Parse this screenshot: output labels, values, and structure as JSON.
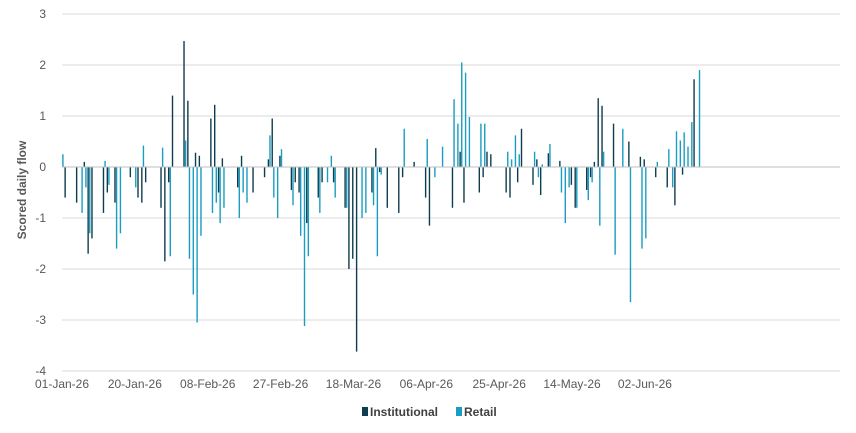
{
  "chart_data": {
    "type": "bar",
    "ylabel": "Scored daily flow",
    "xlabel": "",
    "title": "",
    "ylim": [
      -4,
      3
    ],
    "y_ticks": [
      "-4",
      "-3",
      "-2",
      "-1",
      "0",
      "1",
      "2",
      "3"
    ],
    "x_tick_labels": [
      "01-Jan-26",
      "20-Jan-26",
      "08-Feb-26",
      "27-Feb-26",
      "18-Mar-26",
      "06-Apr-26",
      "25-Apr-26",
      "14-May-26",
      "02-Jun-26"
    ],
    "x_range": [
      "2026-01-01",
      "2026-06-15"
    ],
    "grid": "horizontal",
    "legend_position": "bottom",
    "colors": {
      "Institutional": "#0e3d4f",
      "Retail": "#1a9dc0",
      "grid": "#d9d9d9",
      "text": "#595959"
    },
    "series": [
      {
        "name": "Institutional",
        "values": [
          [
            "2026-01-02",
            -0.6
          ],
          [
            "2026-01-05",
            -0.7
          ],
          [
            "2026-01-07",
            0.1
          ],
          [
            "2026-01-08",
            -1.7
          ],
          [
            "2026-01-09",
            -1.4
          ],
          [
            "2026-01-12",
            -0.9
          ],
          [
            "2026-01-13",
            -0.5
          ],
          [
            "2026-01-15",
            -0.7
          ],
          [
            "2026-01-19",
            -0.2
          ],
          [
            "2026-01-21",
            -0.6
          ],
          [
            "2026-01-22",
            -0.7
          ],
          [
            "2026-01-23",
            -0.3
          ],
          [
            "2026-01-27",
            -0.8
          ],
          [
            "2026-01-28",
            -1.85
          ],
          [
            "2026-01-29",
            -0.3
          ],
          [
            "2026-01-30",
            1.4
          ],
          [
            "2026-02-02",
            2.47
          ],
          [
            "2026-02-03",
            1.3
          ],
          [
            "2026-02-05",
            0.28
          ],
          [
            "2026-02-06",
            0.22
          ],
          [
            "2026-02-09",
            0.95
          ],
          [
            "2026-02-10",
            1.22
          ],
          [
            "2026-02-11",
            -0.5
          ],
          [
            "2026-02-12",
            0.17
          ],
          [
            "2026-02-16",
            -0.4
          ],
          [
            "2026-02-17",
            0.22
          ],
          [
            "2026-02-20",
            -0.5
          ],
          [
            "2026-02-23",
            -0.2
          ],
          [
            "2026-02-24",
            0.15
          ],
          [
            "2026-02-25",
            0.95
          ],
          [
            "2026-02-27",
            0.22
          ],
          [
            "2026-03-02",
            -0.45
          ],
          [
            "2026-03-03",
            -0.3
          ],
          [
            "2026-03-04",
            -0.5
          ],
          [
            "2026-03-06",
            -1.1
          ],
          [
            "2026-03-09",
            -0.6
          ],
          [
            "2026-03-10",
            -0.3
          ],
          [
            "2026-03-13",
            -0.3
          ],
          [
            "2026-03-16",
            -0.8
          ],
          [
            "2026-03-17",
            -2.0
          ],
          [
            "2026-03-18",
            -1.8
          ],
          [
            "2026-03-19",
            -3.62
          ],
          [
            "2026-03-23",
            -0.5
          ],
          [
            "2026-03-24",
            0.37
          ],
          [
            "2026-03-25",
            -0.1
          ],
          [
            "2026-03-27",
            -0.8
          ],
          [
            "2026-03-30",
            -0.9
          ],
          [
            "2026-03-31",
            -0.2
          ],
          [
            "2026-04-03",
            0.1
          ],
          [
            "2026-04-06",
            -0.6
          ],
          [
            "2026-04-07",
            -1.15
          ],
          [
            "2026-04-13",
            -0.8
          ],
          [
            "2026-04-15",
            0.3
          ],
          [
            "2026-04-16",
            -0.7
          ],
          [
            "2026-04-20",
            -0.5
          ],
          [
            "2026-04-21",
            -0.2
          ],
          [
            "2026-04-22",
            0.3
          ],
          [
            "2026-04-23",
            0.25
          ],
          [
            "2026-04-27",
            -0.5
          ],
          [
            "2026-04-28",
            -0.6
          ],
          [
            "2026-04-30",
            -0.3
          ],
          [
            "2026-05-01",
            0.75
          ],
          [
            "2026-05-04",
            -0.35
          ],
          [
            "2026-05-05",
            0.15
          ],
          [
            "2026-05-06",
            -0.55
          ],
          [
            "2026-05-08",
            0.27
          ],
          [
            "2026-05-11",
            0.12
          ],
          [
            "2026-05-14",
            -0.35
          ],
          [
            "2026-05-15",
            -0.8
          ],
          [
            "2026-05-18",
            -0.45
          ],
          [
            "2026-05-19",
            -0.2
          ],
          [
            "2026-05-20",
            0.1
          ],
          [
            "2026-05-21",
            1.35
          ],
          [
            "2026-05-22",
            1.2
          ],
          [
            "2026-05-25",
            0.85
          ],
          [
            "2026-05-29",
            0.5
          ],
          [
            "2026-06-01",
            0.2
          ],
          [
            "2026-06-02",
            0.15
          ],
          [
            "2026-06-05",
            -0.2
          ],
          [
            "2026-06-08",
            -0.4
          ],
          [
            "2026-06-10",
            -0.75
          ],
          [
            "2026-06-12",
            -0.15
          ],
          [
            "2026-06-15",
            1.72
          ]
        ]
      },
      {
        "name": "Retail",
        "values": [
          [
            "2026-01-01",
            0.25
          ],
          [
            "2026-01-06",
            -0.9
          ],
          [
            "2026-01-07",
            -0.4
          ],
          [
            "2026-01-08",
            -1.3
          ],
          [
            "2026-01-12",
            0.12
          ],
          [
            "2026-01-13",
            -0.35
          ],
          [
            "2026-01-15",
            -1.6
          ],
          [
            "2026-01-16",
            -1.3
          ],
          [
            "2026-01-20",
            -0.4
          ],
          [
            "2026-01-22",
            0.42
          ],
          [
            "2026-01-27",
            0.38
          ],
          [
            "2026-01-29",
            -1.75
          ],
          [
            "2026-02-02",
            0.52
          ],
          [
            "2026-02-03",
            -1.8
          ],
          [
            "2026-02-04",
            -2.5
          ],
          [
            "2026-02-05",
            -3.05
          ],
          [
            "2026-02-06",
            -1.35
          ],
          [
            "2026-02-09",
            -0.9
          ],
          [
            "2026-02-10",
            -0.7
          ],
          [
            "2026-02-11",
            -1.1
          ],
          [
            "2026-02-12",
            -0.8
          ],
          [
            "2026-02-16",
            -1.0
          ],
          [
            "2026-02-17",
            -0.5
          ],
          [
            "2026-02-18",
            -0.7
          ],
          [
            "2026-02-24",
            0.62
          ],
          [
            "2026-02-25",
            -0.6
          ],
          [
            "2026-02-26",
            -1.0
          ],
          [
            "2026-02-27",
            0.35
          ],
          [
            "2026-03-02",
            -0.75
          ],
          [
            "2026-03-04",
            -1.35
          ],
          [
            "2026-03-05",
            -3.12
          ],
          [
            "2026-03-06",
            -1.75
          ],
          [
            "2026-03-09",
            -0.9
          ],
          [
            "2026-03-11",
            -0.3
          ],
          [
            "2026-03-12",
            0.22
          ],
          [
            "2026-03-13",
            -0.6
          ],
          [
            "2026-03-16",
            -0.8
          ],
          [
            "2026-03-20",
            -1.0
          ],
          [
            "2026-03-21",
            -0.9
          ],
          [
            "2026-03-23",
            -0.75
          ],
          [
            "2026-03-24",
            -1.75
          ],
          [
            "2026-03-25",
            -0.15
          ],
          [
            "2026-03-31",
            0.75
          ],
          [
            "2026-04-06",
            0.55
          ],
          [
            "2026-04-08",
            -0.2
          ],
          [
            "2026-04-10",
            0.4
          ],
          [
            "2026-04-13",
            1.33
          ],
          [
            "2026-04-14",
            0.85
          ],
          [
            "2026-04-15",
            2.05
          ],
          [
            "2026-04-16",
            1.85
          ],
          [
            "2026-04-17",
            0.98
          ],
          [
            "2026-04-20",
            0.85
          ],
          [
            "2026-04-21",
            0.85
          ],
          [
            "2026-04-27",
            0.3
          ],
          [
            "2026-04-28",
            0.15
          ],
          [
            "2026-04-29",
            0.62
          ],
          [
            "2026-04-30",
            0.25
          ],
          [
            "2026-05-04",
            0.3
          ],
          [
            "2026-05-05",
            -0.2
          ],
          [
            "2026-05-06",
            0.05
          ],
          [
            "2026-05-08",
            0.45
          ],
          [
            "2026-05-11",
            -0.5
          ],
          [
            "2026-05-12",
            -1.1
          ],
          [
            "2026-05-13",
            -0.4
          ],
          [
            "2026-05-15",
            -0.8
          ],
          [
            "2026-05-18",
            -0.65
          ],
          [
            "2026-05-19",
            -0.3
          ],
          [
            "2026-05-21",
            -1.15
          ],
          [
            "2026-05-22",
            0.3
          ],
          [
            "2026-05-25",
            -1.72
          ],
          [
            "2026-05-27",
            0.75
          ],
          [
            "2026-05-29",
            -2.65
          ],
          [
            "2026-06-01",
            -1.6
          ],
          [
            "2026-06-02",
            -1.4
          ],
          [
            "2026-06-05",
            0.1
          ],
          [
            "2026-06-08",
            0.35
          ],
          [
            "2026-06-09",
            -0.4
          ],
          [
            "2026-06-10",
            0.7
          ],
          [
            "2026-06-11",
            0.52
          ],
          [
            "2026-06-12",
            0.68
          ],
          [
            "2026-06-13",
            0.4
          ],
          [
            "2026-06-14",
            0.88
          ],
          [
            "2026-06-16",
            1.9
          ]
        ]
      }
    ]
  }
}
